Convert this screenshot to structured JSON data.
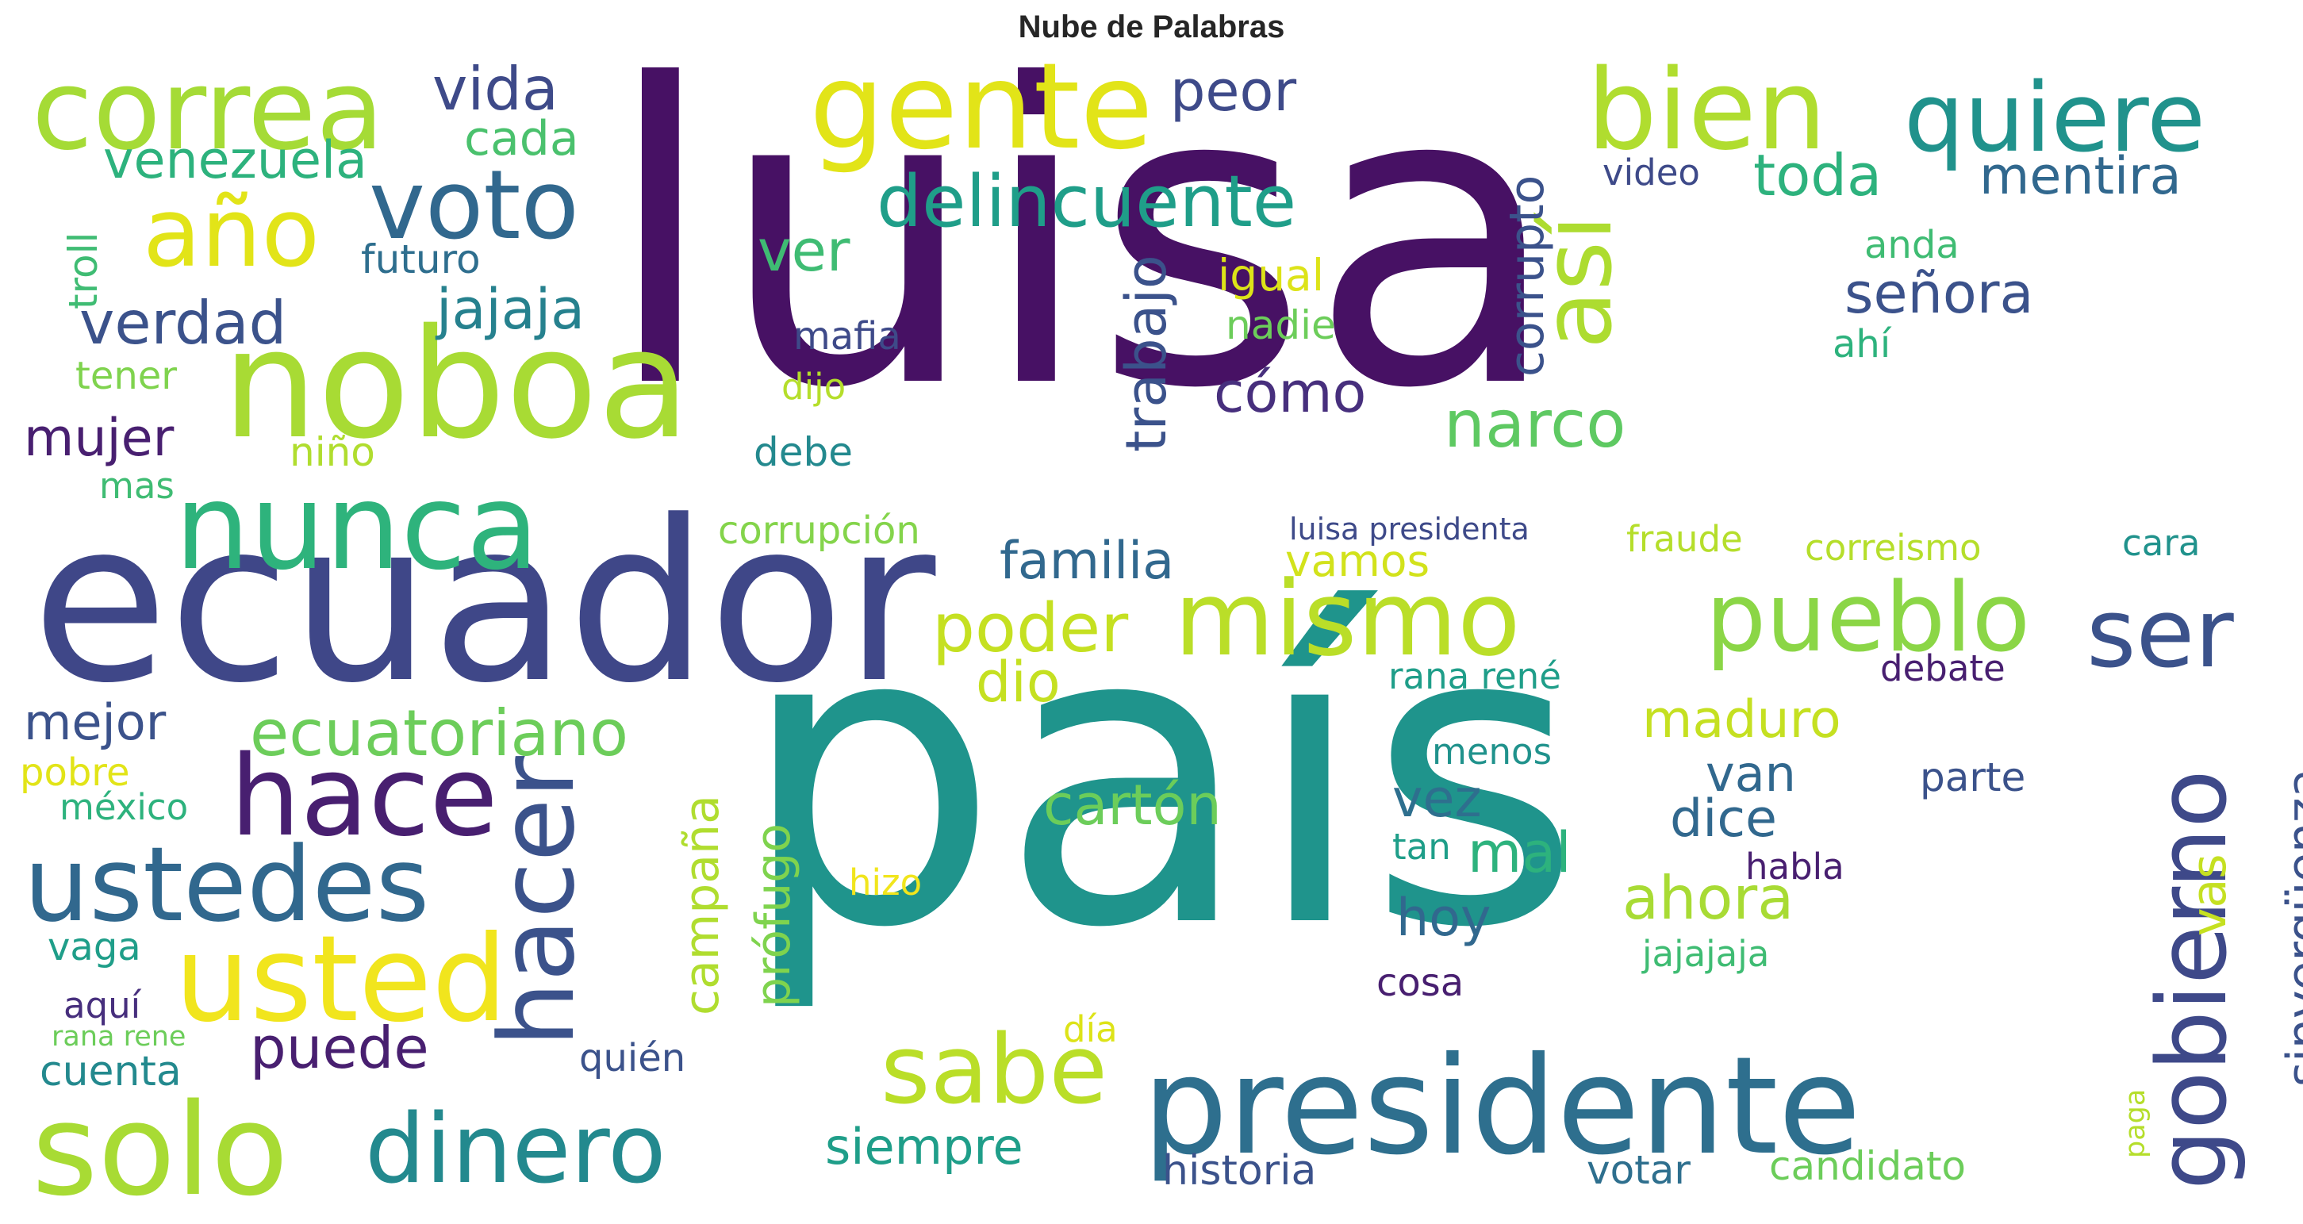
{
  "title": "Nube de Palabras",
  "words": [
    {
      "text": "luisa",
      "color": "#471164",
      "rot": 0
    },
    {
      "text": "país",
      "color": "#1f948c",
      "rot": 0
    },
    {
      "text": "ecuador",
      "color": "#3f4788",
      "rot": 0
    },
    {
      "text": "presidente",
      "color": "#2e6f8e",
      "rot": 0
    },
    {
      "text": "noboa",
      "color": "#a8db34",
      "rot": 0
    },
    {
      "text": "correa",
      "color": "#a5db36",
      "rot": 0
    },
    {
      "text": "gente",
      "color": "#e2e418",
      "rot": 0
    },
    {
      "text": "bien",
      "color": "#b0dd2f",
      "rot": 0
    },
    {
      "text": "quiere",
      "color": "#20928c",
      "rot": 0
    },
    {
      "text": "nunca",
      "color": "#2eb37c",
      "rot": 0
    },
    {
      "text": "mismo",
      "color": "#bade28",
      "rot": 0
    },
    {
      "text": "pueblo",
      "color": "#8bd646",
      "rot": 0
    },
    {
      "text": "ser",
      "color": "#3b528b",
      "rot": 0
    },
    {
      "text": "solo",
      "color": "#a8db34",
      "rot": 0
    },
    {
      "text": "dinero",
      "color": "#23898e",
      "rot": 0
    },
    {
      "text": "usted",
      "color": "#f1e51d",
      "rot": 0
    },
    {
      "text": "ustedes",
      "color": "#31688e",
      "rot": 0
    },
    {
      "text": "hacer",
      "color": "#3b528b",
      "rot": -90
    },
    {
      "text": "hace",
      "color": "#481f70",
      "rot": 0
    },
    {
      "text": "sabe",
      "color": "#bade28",
      "rot": 0
    },
    {
      "text": "voto",
      "color": "#31688e",
      "rot": 0
    },
    {
      "text": "año",
      "color": "#e2e418",
      "rot": 0
    },
    {
      "text": "así",
      "color": "#addc30",
      "rot": -90
    },
    {
      "text": "gobierno",
      "color": "#3e4989",
      "rot": -90
    },
    {
      "text": "delincuente",
      "color": "#1f9e89",
      "rot": 0
    },
    {
      "text": "poder",
      "color": "#c5e021",
      "rot": 0
    },
    {
      "text": "ecuatoriano",
      "color": "#6ccd5a",
      "rot": 0
    },
    {
      "text": "vida",
      "color": "#3e4a89",
      "rot": 0
    },
    {
      "text": "peor",
      "color": "#3e4a89",
      "rot": 0
    },
    {
      "text": "venezuela",
      "color": "#2db27d",
      "rot": 0
    },
    {
      "text": "cada",
      "color": "#4ac16d",
      "rot": 0
    },
    {
      "text": "corrupto",
      "color": "#3b528b",
      "rot": -90
    },
    {
      "text": "toda",
      "color": "#2db27d",
      "rot": 0
    },
    {
      "text": "mentira",
      "color": "#31688e",
      "rot": 0
    },
    {
      "text": "video",
      "color": "#3e4a89",
      "rot": 0
    },
    {
      "text": "troll",
      "color": "#3fbc73",
      "rot": -90
    },
    {
      "text": "futuro",
      "color": "#2e6e8e",
      "rot": 0
    },
    {
      "text": "ver",
      "color": "#3fbc73",
      "rot": 0
    },
    {
      "text": "trabajo",
      "color": "#3b528b",
      "rot": -90
    },
    {
      "text": "igual",
      "color": "#dde318",
      "rot": 0
    },
    {
      "text": "anda",
      "color": "#3fbc73",
      "rot": 0
    },
    {
      "text": "señora",
      "color": "#3b528b",
      "rot": 0
    },
    {
      "text": "presidenta",
      "color": "#2e6f8e",
      "rot": -90
    },
    {
      "text": "verdad",
      "color": "#3b528b",
      "rot": 0
    },
    {
      "text": "jajaja",
      "color": "#26818e",
      "rot": 0
    },
    {
      "text": "mafia",
      "color": "#3e4a89",
      "rot": 0
    },
    {
      "text": "nadie",
      "color": "#6ccd5a",
      "rot": 0
    },
    {
      "text": "ahí",
      "color": "#2db27d",
      "rot": 0
    },
    {
      "text": "tener",
      "color": "#7fd34e",
      "rot": 0
    },
    {
      "text": "cómo",
      "color": "#472f7d",
      "rot": 0
    },
    {
      "text": "narco",
      "color": "#5ec962",
      "rot": 0
    },
    {
      "text": "dijo",
      "color": "#b5de2b",
      "rot": 0
    },
    {
      "text": "mujer",
      "color": "#481f70",
      "rot": 0
    },
    {
      "text": "niño",
      "color": "#b0dd2f",
      "rot": 0
    },
    {
      "text": "debe",
      "color": "#23898e",
      "rot": 0
    },
    {
      "text": "mas",
      "color": "#3fbc73",
      "rot": 0
    },
    {
      "text": "corrupción",
      "color": "#84d44b",
      "rot": 0
    },
    {
      "text": "luisa presidenta",
      "color": "#3e4a89",
      "rot": 0
    },
    {
      "text": "fraude",
      "color": "#b5de2b",
      "rot": 0
    },
    {
      "text": "correismo",
      "color": "#b5de2b",
      "rot": 0
    },
    {
      "text": "cara",
      "color": "#20928c",
      "rot": 0
    },
    {
      "text": "familia",
      "color": "#31688e",
      "rot": 0
    },
    {
      "text": "vamos",
      "color": "#d2e21b",
      "rot": 0
    },
    {
      "text": "dio",
      "color": "#c5e021",
      "rot": 0
    },
    {
      "text": "rana rené",
      "color": "#1f9e89",
      "rot": 0
    },
    {
      "text": "debate",
      "color": "#481f70",
      "rot": 0
    },
    {
      "text": "mejor",
      "color": "#3b528b",
      "rot": 0
    },
    {
      "text": "maduro",
      "color": "#c5e021",
      "rot": 0
    },
    {
      "text": "sinvergüenza",
      "color": "#3b528b",
      "rot": -90
    },
    {
      "text": "pobre",
      "color": "#e2e418",
      "rot": 0
    },
    {
      "text": "méxico",
      "color": "#2db27d",
      "rot": 0
    },
    {
      "text": "campaña",
      "color": "#b0dd2f",
      "rot": -90
    },
    {
      "text": "prófugo",
      "color": "#7fd34e",
      "rot": -90
    },
    {
      "text": "cartón",
      "color": "#6ccd5a",
      "rot": 0
    },
    {
      "text": "menos",
      "color": "#20928c",
      "rot": 0
    },
    {
      "text": "van",
      "color": "#31688e",
      "rot": 0
    },
    {
      "text": "vez",
      "color": "#2e6f8e",
      "rot": 0
    },
    {
      "text": "dice",
      "color": "#31688e",
      "rot": 0
    },
    {
      "text": "parte",
      "color": "#3b528b",
      "rot": 0
    },
    {
      "text": "vas",
      "color": "#c5e021",
      "rot": -90
    },
    {
      "text": "tan",
      "color": "#1f9e89",
      "rot": 0
    },
    {
      "text": "mal",
      "color": "#2db27d",
      "rot": 0
    },
    {
      "text": "hizo",
      "color": "#f1e51d",
      "rot": 0
    },
    {
      "text": "habla",
      "color": "#481f70",
      "rot": 0
    },
    {
      "text": "ahora",
      "color": "#a8db34",
      "rot": 0
    },
    {
      "text": "hoy",
      "color": "#31688e",
      "rot": 0
    },
    {
      "text": "vaga",
      "color": "#1f9e89",
      "rot": 0
    },
    {
      "text": "jajajaja",
      "color": "#3fbc73",
      "rot": 0
    },
    {
      "text": "aquí",
      "color": "#472f7d",
      "rot": 0
    },
    {
      "text": "cosa",
      "color": "#481f70",
      "rot": 0
    },
    {
      "text": "rana rene",
      "color": "#6ccd5a",
      "rot": 0
    },
    {
      "text": "día",
      "color": "#dde318",
      "rot": 0
    },
    {
      "text": "paga",
      "color": "#b5de2b",
      "rot": -90
    },
    {
      "text": "puede",
      "color": "#481f70",
      "rot": 0
    },
    {
      "text": "cuenta",
      "color": "#23898e",
      "rot": 0
    },
    {
      "text": "quién",
      "color": "#3b528b",
      "rot": 0
    },
    {
      "text": "siempre",
      "color": "#1f9e89",
      "rot": 0
    },
    {
      "text": "historia",
      "color": "#3b528b",
      "rot": 0
    },
    {
      "text": "votar",
      "color": "#2e6f8e",
      "rot": 0
    },
    {
      "text": "candidato",
      "color": "#6ccd5a",
      "rot": 0
    }
  ]
}
